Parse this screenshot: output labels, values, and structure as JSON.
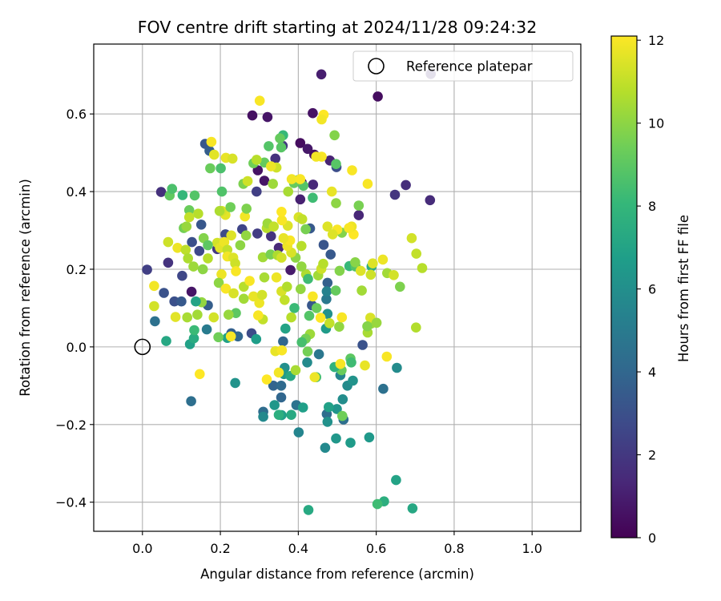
{
  "chart_data": {
    "type": "scatter",
    "title": "FOV centre drift starting at 2024/11/28 09:24:32",
    "xlabel": "Angular distance from reference (arcmin)",
    "ylabel": "Rotation from reference (arcmin)",
    "xlim": [
      -0.125,
      1.125
    ],
    "ylim": [
      -0.475,
      0.78
    ],
    "xticks": [
      0.0,
      0.2,
      0.4,
      0.6,
      0.8,
      1.0
    ],
    "xtick_labels": [
      "0.0",
      "0.2",
      "0.4",
      "0.6",
      "0.8",
      "1.0"
    ],
    "yticks": [
      -0.4,
      -0.2,
      0.0,
      0.2,
      0.4,
      0.6
    ],
    "ytick_labels": [
      "−0.4",
      "−0.2",
      "0.0",
      "0.2",
      "0.4",
      "0.6"
    ],
    "grid": true,
    "legend": {
      "placement": "top-right",
      "entries": [
        {
          "label": "Reference platepar",
          "marker": "open-circle"
        }
      ]
    },
    "reference_point": {
      "x": 0.0,
      "y": 0.0
    },
    "colorbar": {
      "label": "Hours from first FF file",
      "colormap": "viridis",
      "range": [
        0,
        12.1
      ],
      "ticks": [
        0,
        2,
        4,
        6,
        8,
        10,
        12
      ],
      "tick_labels": [
        "0",
        "2",
        "4",
        "6",
        "8",
        "10",
        "12"
      ]
    },
    "colormap_stops": [
      "#440154",
      "#482878",
      "#3e4989",
      "#31688e",
      "#26828e",
      "#1f9e89",
      "#35b779",
      "#6ece58",
      "#b5de2b",
      "#fde725"
    ],
    "points_xyc": [
      [
        0.459,
        0.702,
        1.0
      ],
      [
        0.604,
        0.645,
        0.4
      ],
      [
        0.74,
        0.703,
        1.6
      ],
      [
        0.437,
        0.602,
        0.6
      ],
      [
        0.321,
        0.592,
        0.7
      ],
      [
        0.282,
        0.596,
        0.5
      ],
      [
        0.405,
        0.525,
        0.4
      ],
      [
        0.424,
        0.51,
        0.8
      ],
      [
        0.441,
        0.495,
        0.5
      ],
      [
        0.481,
        0.48,
        1.2
      ],
      [
        0.296,
        0.455,
        0.6
      ],
      [
        0.313,
        0.428,
        0.7
      ],
      [
        0.409,
        0.423,
        0.9
      ],
      [
        0.405,
        0.38,
        1.1
      ],
      [
        0.438,
        0.418,
        1.4
      ],
      [
        0.498,
        0.463,
        2.9
      ],
      [
        0.676,
        0.417,
        1.6
      ],
      [
        0.648,
        0.392,
        1.9
      ],
      [
        0.738,
        0.378,
        1.5
      ],
      [
        0.555,
        0.339,
        1.3
      ],
      [
        0.293,
        0.4,
        2.3
      ],
      [
        0.161,
        0.523,
        3.3
      ],
      [
        0.172,
        0.505,
        3.6
      ],
      [
        0.341,
        0.485,
        1.8
      ],
      [
        0.36,
        0.518,
        2.0
      ],
      [
        0.048,
        0.399,
        1.7
      ],
      [
        0.066,
        0.217,
        1.8
      ],
      [
        0.012,
        0.199,
        2.3
      ],
      [
        0.126,
        0.142,
        0.7
      ],
      [
        0.38,
        0.198,
        0.9
      ],
      [
        0.35,
        0.255,
        1.4
      ],
      [
        0.33,
        0.285,
        1.8
      ],
      [
        0.295,
        0.292,
        2.2
      ],
      [
        0.256,
        0.303,
        2.5
      ],
      [
        0.213,
        0.29,
        2.8
      ],
      [
        0.192,
        0.252,
        2.0
      ],
      [
        0.146,
        0.247,
        2.7
      ],
      [
        0.127,
        0.27,
        3.0
      ],
      [
        0.151,
        0.315,
        3.3
      ],
      [
        0.102,
        0.183,
        2.6
      ],
      [
        0.082,
        0.117,
        3.0
      ],
      [
        0.055,
        0.139,
        3.1
      ],
      [
        0.032,
        0.066,
        4.5
      ],
      [
        0.125,
        -0.14,
        4.4
      ],
      [
        0.1,
        0.117,
        3.4
      ],
      [
        0.168,
        0.107,
        3.6
      ],
      [
        0.228,
        0.035,
        3.7
      ],
      [
        0.245,
        0.027,
        4.0
      ],
      [
        0.28,
        0.035,
        2.8
      ],
      [
        0.336,
        -0.1,
        3.9
      ],
      [
        0.356,
        -0.1,
        4.2
      ],
      [
        0.356,
        -0.13,
        4.0
      ],
      [
        0.31,
        -0.167,
        4.3
      ],
      [
        0.395,
        -0.15,
        4.6
      ],
      [
        0.473,
        -0.173,
        4.3
      ],
      [
        0.516,
        -0.187,
        4.4
      ],
      [
        0.43,
        0.305,
        3.4
      ],
      [
        0.465,
        0.263,
        3.2
      ],
      [
        0.483,
        0.238,
        3.4
      ],
      [
        0.435,
        0.107,
        3.3
      ],
      [
        0.475,
        0.165,
        3.7
      ],
      [
        0.361,
        0.014,
        4.0
      ],
      [
        0.365,
        -0.054,
        6.0
      ],
      [
        0.423,
        -0.04,
        5.8
      ],
      [
        0.453,
        -0.019,
        4.8
      ],
      [
        0.508,
        -0.073,
        5.5
      ],
      [
        0.526,
        -0.1,
        5.8
      ],
      [
        0.54,
        -0.087,
        6.2
      ],
      [
        0.514,
        -0.135,
        5.9
      ],
      [
        0.499,
        -0.16,
        6.3
      ],
      [
        0.565,
        0.005,
        3.1
      ],
      [
        0.618,
        -0.108,
        4.5
      ],
      [
        0.653,
        -0.054,
        5.8
      ],
      [
        0.582,
        -0.233,
        6.5
      ],
      [
        0.534,
        -0.247,
        6.6
      ],
      [
        0.497,
        -0.236,
        6.4
      ],
      [
        0.469,
        -0.26,
        5.7
      ],
      [
        0.401,
        -0.22,
        5.5
      ],
      [
        0.651,
        -0.343,
        7.0
      ],
      [
        0.426,
        -0.42,
        7.3
      ],
      [
        0.62,
        -0.398,
        7.6
      ],
      [
        0.603,
        -0.405,
        8.3
      ],
      [
        0.693,
        -0.416,
        7.2
      ],
      [
        0.238,
        -0.093,
        6.2
      ],
      [
        0.31,
        -0.18,
        5.7
      ],
      [
        0.357,
        -0.176,
        6.8
      ],
      [
        0.382,
        -0.175,
        7.3
      ],
      [
        0.339,
        -0.15,
        6.4
      ],
      [
        0.363,
        -0.07,
        6.5
      ],
      [
        0.412,
        -0.156,
        6.8
      ],
      [
        0.38,
        -0.075,
        7.2
      ],
      [
        0.35,
        -0.175,
        7.6
      ],
      [
        0.478,
        -0.155,
        6.9
      ],
      [
        0.475,
        -0.193,
        6.1
      ],
      [
        0.513,
        -0.178,
        9.4
      ],
      [
        0.122,
        0.007,
        6.9
      ],
      [
        0.061,
        0.015,
        7.2
      ],
      [
        0.132,
        0.022,
        7.4
      ],
      [
        0.165,
        0.045,
        5.0
      ],
      [
        0.218,
        0.023,
        6.9
      ],
      [
        0.292,
        0.02,
        6.7
      ],
      [
        0.367,
        0.047,
        7.0
      ],
      [
        0.471,
        0.047,
        6.6
      ],
      [
        0.475,
        0.085,
        6.1
      ],
      [
        0.472,
        0.123,
        4.9
      ],
      [
        0.473,
        0.143,
        5.4
      ],
      [
        0.531,
        0.208,
        8.1
      ],
      [
        0.547,
        0.207,
        8.8
      ],
      [
        0.588,
        0.207,
        7.4
      ],
      [
        0.103,
        0.391,
        8.0
      ],
      [
        0.07,
        0.39,
        9.1
      ],
      [
        0.076,
        0.407,
        8.6
      ],
      [
        0.134,
        0.39,
        8.8
      ],
      [
        0.12,
        0.352,
        9.3
      ],
      [
        0.201,
        0.46,
        8.6
      ],
      [
        0.174,
        0.46,
        9.3
      ],
      [
        0.285,
        0.473,
        9.4
      ],
      [
        0.313,
        0.475,
        9.2
      ],
      [
        0.324,
        0.517,
        8.8
      ],
      [
        0.361,
        0.545,
        8.1
      ],
      [
        0.353,
        0.537,
        9.2
      ],
      [
        0.356,
        0.514,
        8.9
      ],
      [
        0.493,
        0.545,
        9.8
      ],
      [
        0.497,
        0.471,
        8.9
      ],
      [
        0.437,
        0.384,
        8.3
      ],
      [
        0.413,
        0.415,
        8.8
      ],
      [
        0.4,
        0.43,
        9.1
      ],
      [
        0.389,
        0.422,
        9.2
      ],
      [
        0.555,
        0.364,
        9.6
      ],
      [
        0.512,
        0.294,
        9.8
      ],
      [
        0.506,
        0.196,
        9.8
      ],
      [
        0.496,
        0.145,
        9.2
      ],
      [
        0.563,
        0.145,
        10.4
      ],
      [
        0.587,
        0.06,
        10.3
      ],
      [
        0.505,
        0.052,
        10.1
      ],
      [
        0.578,
        0.037,
        10.5
      ],
      [
        0.43,
        0.033,
        10.3
      ],
      [
        0.419,
        0.021,
        9.5
      ],
      [
        0.409,
        0.012,
        8.5
      ],
      [
        0.424,
        -0.012,
        9.5
      ],
      [
        0.534,
        -0.03,
        9.0
      ],
      [
        0.536,
        -0.04,
        8.3
      ],
      [
        0.511,
        -0.06,
        9.3
      ],
      [
        0.493,
        -0.052,
        7.8
      ],
      [
        0.446,
        -0.078,
        8.5
      ],
      [
        0.393,
        -0.06,
        10.5
      ],
      [
        0.628,
        0.19,
        10.4
      ],
      [
        0.661,
        0.155,
        9.7
      ],
      [
        0.702,
        0.05,
        10.7
      ],
      [
        0.703,
        0.24,
        11.0
      ],
      [
        0.691,
        0.28,
        11.3
      ],
      [
        0.718,
        0.203,
        10.8
      ],
      [
        0.586,
        0.186,
        11.2
      ],
      [
        0.591,
        0.215,
        11.5
      ],
      [
        0.617,
        0.225,
        11.8
      ],
      [
        0.645,
        0.185,
        11.3
      ],
      [
        0.627,
        -0.025,
        12.0
      ],
      [
        0.571,
        -0.048,
        11.7
      ],
      [
        0.508,
        -0.044,
        12.0
      ],
      [
        0.442,
        -0.078,
        11.8
      ],
      [
        0.35,
        -0.066,
        11.9
      ],
      [
        0.319,
        -0.084,
        12.1
      ],
      [
        0.341,
        -0.011,
        11.7
      ],
      [
        0.358,
        -0.009,
        12.0
      ],
      [
        0.147,
        -0.07,
        12.1
      ],
      [
        0.03,
        0.105,
        11.3
      ],
      [
        0.03,
        0.157,
        11.9
      ],
      [
        0.085,
        0.077,
        11.6
      ],
      [
        0.115,
        0.076,
        10.5
      ],
      [
        0.183,
        0.076,
        11.3
      ],
      [
        0.227,
        0.027,
        12.0
      ],
      [
        0.26,
        0.124,
        10.4
      ],
      [
        0.3,
        0.113,
        11.8
      ],
      [
        0.309,
        0.071,
        11.0
      ],
      [
        0.297,
        0.081,
        12.0
      ],
      [
        0.313,
        0.179,
        10.5
      ],
      [
        0.344,
        0.179,
        11.8
      ],
      [
        0.357,
        0.143,
        11.4
      ],
      [
        0.365,
        0.121,
        11.0
      ],
      [
        0.371,
        0.155,
        10.7
      ],
      [
        0.406,
        0.149,
        10.1
      ],
      [
        0.42,
        0.187,
        10.6
      ],
      [
        0.408,
        0.207,
        10.1
      ],
      [
        0.451,
        0.184,
        10.4
      ],
      [
        0.459,
        0.201,
        11.2
      ],
      [
        0.464,
        0.214,
        10.8
      ],
      [
        0.5,
        0.302,
        12.0
      ],
      [
        0.475,
        0.31,
        11.5
      ],
      [
        0.488,
        0.29,
        11.5
      ],
      [
        0.542,
        0.29,
        12.1
      ],
      [
        0.578,
        0.42,
        12.0
      ],
      [
        0.538,
        0.455,
        12.0
      ],
      [
        0.46,
        0.49,
        12.0
      ],
      [
        0.446,
        0.49,
        11.9
      ],
      [
        0.465,
        0.598,
        12.1
      ],
      [
        0.46,
        0.586,
        11.9
      ],
      [
        0.301,
        0.634,
        12.0
      ],
      [
        0.344,
        0.462,
        11.2
      ],
      [
        0.33,
        0.465,
        11.8
      ],
      [
        0.293,
        0.482,
        10.8
      ],
      [
        0.214,
        0.487,
        11.7
      ],
      [
        0.231,
        0.485,
        11.4
      ],
      [
        0.177,
        0.528,
        12.0
      ],
      [
        0.184,
        0.495,
        11.6
      ],
      [
        0.066,
        0.27,
        11.2
      ],
      [
        0.09,
        0.255,
        11.8
      ],
      [
        0.111,
        0.25,
        10.9
      ],
      [
        0.117,
        0.228,
        10.6
      ],
      [
        0.131,
        0.207,
        10.3
      ],
      [
        0.155,
        0.2,
        10.0
      ],
      [
        0.168,
        0.228,
        10.8
      ],
      [
        0.192,
        0.268,
        11.3
      ],
      [
        0.199,
        0.255,
        11.6
      ],
      [
        0.21,
        0.27,
        11.8
      ],
      [
        0.218,
        0.25,
        11.0
      ],
      [
        0.218,
        0.233,
        11.9
      ],
      [
        0.233,
        0.23,
        11.5
      ],
      [
        0.238,
        0.215,
        11.2
      ],
      [
        0.24,
        0.195,
        12.0
      ],
      [
        0.203,
        0.187,
        11.8
      ],
      [
        0.196,
        0.165,
        10.0
      ],
      [
        0.214,
        0.15,
        12.0
      ],
      [
        0.234,
        0.138,
        11.4
      ],
      [
        0.26,
        0.155,
        10.8
      ],
      [
        0.275,
        0.17,
        12.0
      ],
      [
        0.285,
        0.13,
        11.7
      ],
      [
        0.307,
        0.134,
        11.3
      ],
      [
        0.309,
        0.231,
        10.4
      ],
      [
        0.329,
        0.238,
        9.6
      ],
      [
        0.347,
        0.236,
        10.6
      ],
      [
        0.357,
        0.23,
        11.3
      ],
      [
        0.393,
        0.23,
        10.0
      ],
      [
        0.382,
        0.243,
        11.4
      ],
      [
        0.372,
        0.26,
        11.8
      ],
      [
        0.408,
        0.26,
        10.8
      ],
      [
        0.373,
        0.312,
        11.5
      ],
      [
        0.358,
        0.326,
        12.0
      ],
      [
        0.357,
        0.348,
        12.1
      ],
      [
        0.401,
        0.334,
        11.4
      ],
      [
        0.41,
        0.329,
        11.0
      ],
      [
        0.379,
        0.274,
        12.0
      ],
      [
        0.362,
        0.28,
        11.7
      ],
      [
        0.319,
        0.306,
        10.8
      ],
      [
        0.321,
        0.318,
        10.3
      ],
      [
        0.337,
        0.31,
        11.0
      ],
      [
        0.263,
        0.336,
        11.9
      ],
      [
        0.267,
        0.356,
        9.7
      ],
      [
        0.213,
        0.34,
        11.6
      ],
      [
        0.204,
        0.35,
        11.4
      ],
      [
        0.266,
        0.287,
        10.1
      ],
      [
        0.251,
        0.262,
        10.0
      ],
      [
        0.226,
        0.36,
        9.4
      ],
      [
        0.198,
        0.35,
        10.6
      ],
      [
        0.157,
        0.28,
        9.8
      ],
      [
        0.168,
        0.262,
        9.0
      ],
      [
        0.228,
        0.287,
        11.5
      ],
      [
        0.204,
        0.4,
        8.7
      ],
      [
        0.259,
        0.42,
        9.7
      ],
      [
        0.27,
        0.427,
        11.2
      ],
      [
        0.335,
        0.42,
        10.3
      ],
      [
        0.374,
        0.4,
        10.5
      ],
      [
        0.383,
        0.432,
        11.9
      ],
      [
        0.405,
        0.432,
        12.0
      ],
      [
        0.486,
        0.4,
        11.7
      ],
      [
        0.497,
        0.37,
        10.0
      ],
      [
        0.537,
        0.31,
        11.8
      ],
      [
        0.53,
        0.306,
        12.0
      ],
      [
        0.546,
        0.218,
        9.9
      ],
      [
        0.56,
        0.196,
        11.5
      ],
      [
        0.419,
        0.303,
        9.6
      ],
      [
        0.425,
        0.175,
        8.3
      ],
      [
        0.437,
        0.13,
        12.0
      ],
      [
        0.457,
        0.075,
        12.1
      ],
      [
        0.48,
        0.061,
        11.0
      ],
      [
        0.512,
        0.076,
        12.0
      ],
      [
        0.585,
        0.075,
        11.4
      ],
      [
        0.577,
        0.053,
        9.8
      ],
      [
        0.601,
        0.062,
        10.2
      ],
      [
        0.39,
        0.1,
        8.2
      ],
      [
        0.382,
        0.076,
        10.8
      ],
      [
        0.428,
        0.08,
        8.8
      ],
      [
        0.447,
        0.1,
        9.3
      ],
      [
        0.24,
        0.087,
        9.0
      ],
      [
        0.221,
        0.083,
        10.2
      ],
      [
        0.195,
        0.025,
        9.4
      ],
      [
        0.152,
        0.115,
        10.1
      ],
      [
        0.137,
        0.117,
        7.0
      ],
      [
        0.133,
        0.043,
        8.2
      ],
      [
        0.141,
        0.083,
        10.4
      ],
      [
        0.106,
        0.306,
        9.5
      ],
      [
        0.113,
        0.31,
        10.2
      ],
      [
        0.143,
        0.343,
        10.8
      ],
      [
        0.12,
        0.334,
        11.0
      ]
    ]
  }
}
